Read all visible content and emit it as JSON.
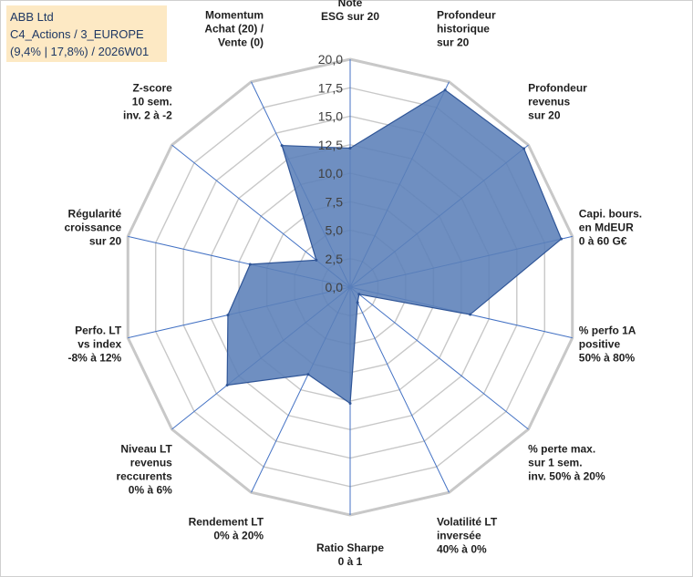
{
  "chart_data": {
    "type": "radar",
    "title_lines": [
      "ABB Ltd",
      "C4_Actions / 3_EUROPE",
      "(9,4% | 17,8%) / 2026W01"
    ],
    "colors": {
      "fill": "#5b7fb8",
      "stroke": "#2f5597",
      "grid": "#c8c8c8",
      "spoke": "#4472c4",
      "title_bg": "#fde9c4"
    },
    "rlim": [
      0,
      20
    ],
    "ticks": [
      "0,0",
      "2,5",
      "5,0",
      "7,5",
      "10,0",
      "12,5",
      "15,0",
      "17,5",
      "20,0"
    ],
    "categories": [
      [
        "Note",
        "ESG sur 20"
      ],
      [
        "Profondeur",
        "historique",
        "sur 20"
      ],
      [
        "Profondeur",
        "revenus",
        "sur 20"
      ],
      [
        "Capi. bours.",
        "en MdEUR",
        "0 à 60 G€"
      ],
      [
        "% perfo 1A",
        "positive",
        "50% à 80%"
      ],
      [
        "% perte max.",
        "sur 1 sem.",
        "inv. 50% à 20%"
      ],
      [
        "Volatilité LT",
        "inversée",
        "40% à 0%"
      ],
      [
        "Ratio Sharpe",
        "0 à 1"
      ],
      [
        "Rendement LT",
        "0% à 20%"
      ],
      [
        "Niveau LT",
        "revenus",
        "reccurents",
        "0% à 6%"
      ],
      [
        "Perfo. LT",
        "vs index",
        "-8% à 12%"
      ],
      [
        "Régularité",
        "croissance",
        "sur 20"
      ],
      [
        "Z-score",
        "10 sem.",
        "inv. 2 à -2"
      ],
      [
        "Momentum",
        "Achat (20) /",
        "Vente (0)"
      ]
    ],
    "series": [
      {
        "name": "ABB Ltd",
        "values": [
          12.2,
          19.2,
          19.5,
          19.0,
          10.8,
          1.0,
          1.5,
          10.2,
          8.5,
          13.8,
          11.0,
          9.0,
          3.8,
          13.8
        ]
      }
    ]
  }
}
